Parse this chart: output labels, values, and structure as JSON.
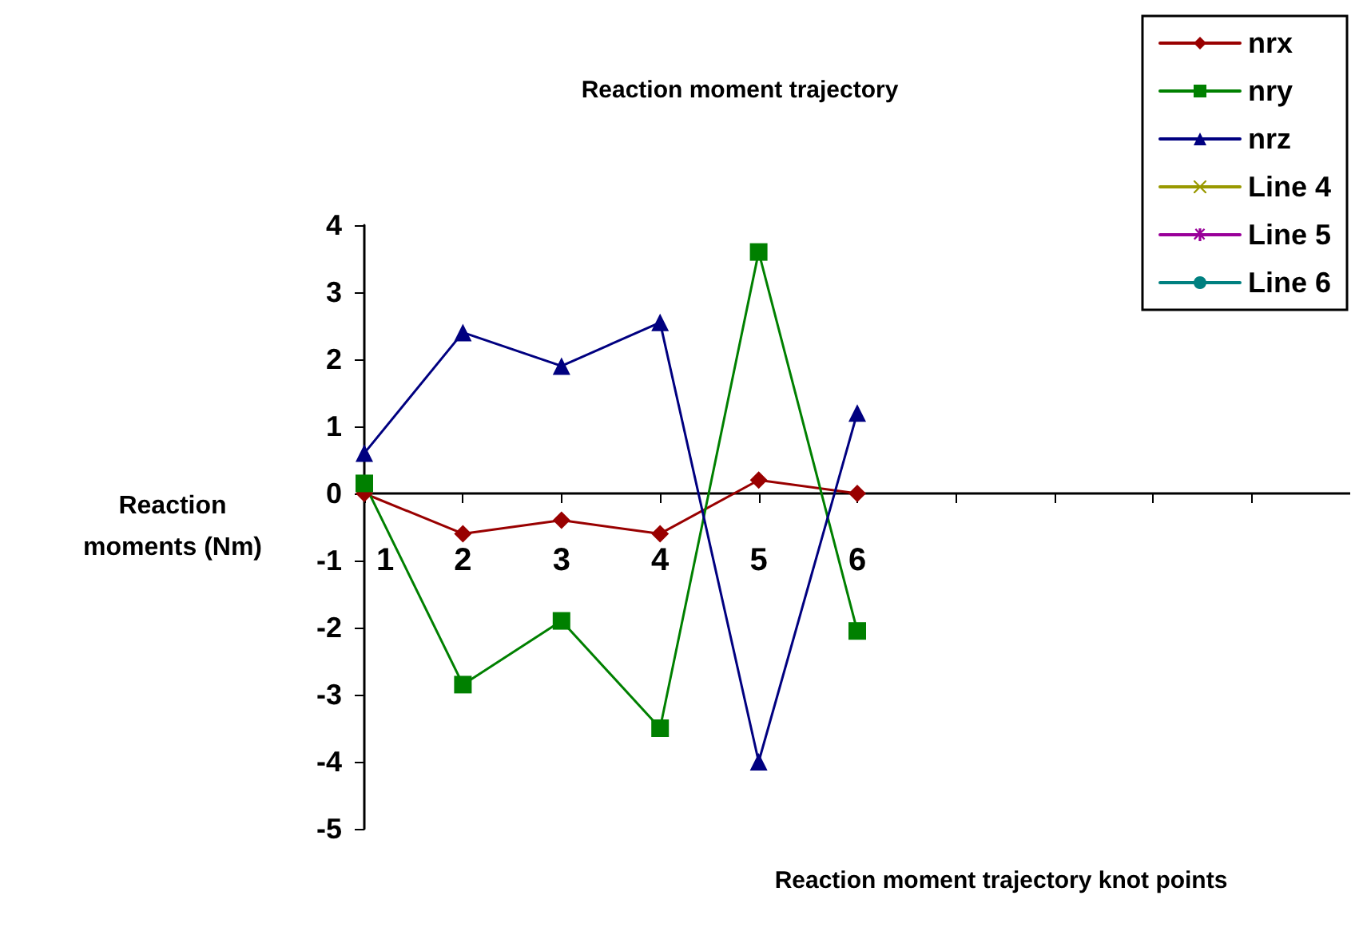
{
  "chart_data": {
    "type": "line",
    "title": "Reaction moment trajectory",
    "xlabel": "Reaction moment trajectory knot points",
    "ylabel": "Reaction\nmoments (Nm)",
    "categories": [
      "1",
      "2",
      "3",
      "4",
      "5",
      "6",
      null,
      null,
      null,
      null,
      null
    ],
    "series": [
      {
        "name": "nrx",
        "color": "#990000",
        "marker": "diamond",
        "values": [
          0,
          -0.6,
          -0.4,
          -0.6,
          0.2,
          0,
          null,
          null,
          null,
          null,
          null
        ]
      },
      {
        "name": "nry",
        "color": "#008000",
        "marker": "square",
        "values": [
          0.15,
          -2.85,
          -1.9,
          -3.5,
          3.6,
          -2.05,
          null,
          null,
          null,
          null,
          null
        ]
      },
      {
        "name": "nrz",
        "color": "#000080",
        "marker": "triangle",
        "values": [
          0.6,
          2.4,
          1.9,
          2.55,
          -4,
          1.2,
          null,
          null,
          null,
          null,
          null
        ]
      },
      {
        "name": "Line 4",
        "color": "#999900",
        "marker": "cross",
        "values": [
          null,
          null,
          null,
          null,
          null,
          null,
          null,
          null,
          null,
          null,
          null
        ]
      },
      {
        "name": "Line 5",
        "color": "#990099",
        "marker": "star",
        "values": [
          null,
          null,
          null,
          null,
          null,
          null,
          null,
          null,
          null,
          null,
          null
        ]
      },
      {
        "name": "Line 6",
        "color": "#008080",
        "marker": "circle",
        "values": [
          null,
          null,
          null,
          null,
          null,
          null,
          null,
          null,
          null,
          null,
          null
        ]
      }
    ],
    "ylim": [
      -5,
      4
    ],
    "yticks": [
      -5,
      -4,
      -3,
      -2,
      -1,
      0,
      1,
      2,
      3,
      4
    ],
    "grid": false,
    "legend": "top right",
    "line_style": "solid"
  }
}
